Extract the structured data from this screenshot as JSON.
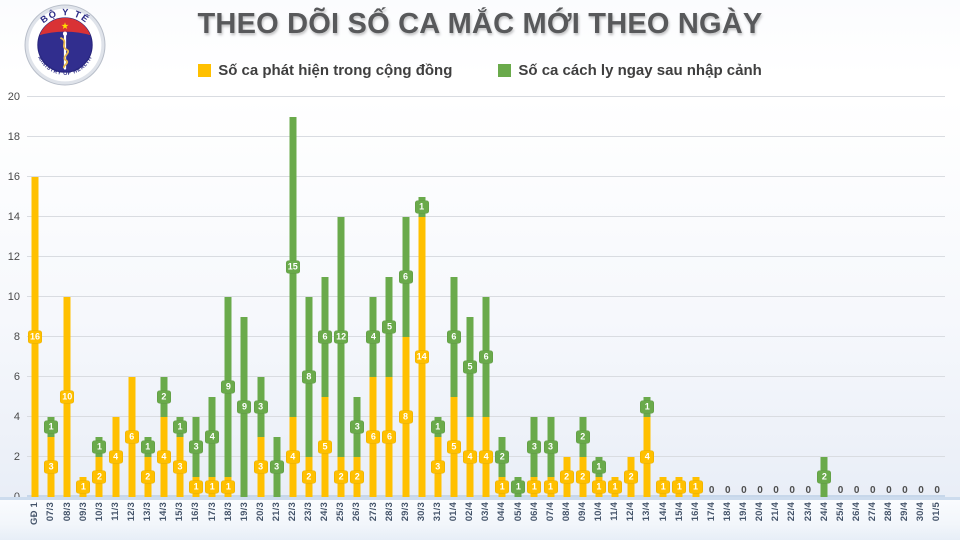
{
  "header": {
    "title": "THEO DÕI SỐ CA MẮC MỚI THEO NGÀY"
  },
  "logo": {
    "top_text": "BỘ Y TẾ",
    "bottom_text": "MINISTRY OF HEALTH",
    "star": "★"
  },
  "chart_data": {
    "type": "bar",
    "stacked": true,
    "title": "THEO DÕI SỐ CA MẮC MỚI THEO NGÀY",
    "grid": true,
    "legend_position": "top",
    "ylim": [
      0,
      20
    ],
    "ytick_step": 2,
    "categories": [
      "GĐ 1",
      "07/3",
      "08/3",
      "09/3",
      "10/3",
      "11/3",
      "12/3",
      "13/3",
      "14/3",
      "15/3",
      "16/3",
      "17/3",
      "18/3",
      "19/3",
      "20/3",
      "21/3",
      "22/3",
      "23/3",
      "24/3",
      "25/3",
      "26/3",
      "27/3",
      "28/3",
      "29/3",
      "30/3",
      "31/3",
      "01/4",
      "02/4",
      "03/4",
      "04/4",
      "05/4",
      "06/4",
      "07/4",
      "08/4",
      "09/4",
      "10/4",
      "11/4",
      "12/4",
      "13/4",
      "14/4",
      "15/4",
      "16/4",
      "17/4",
      "18/4",
      "19/4",
      "20/4",
      "21/4",
      "22/4",
      "23/4",
      "24/4",
      "25/4",
      "26/4",
      "27/4",
      "28/4",
      "29/4",
      "30/4",
      "01/5"
    ],
    "series": [
      {
        "name": "Số ca phát hiện trong cộng đồng",
        "color": "#FFC000",
        "values": [
          16,
          3,
          10,
          1,
          2,
          4,
          6,
          2,
          4,
          3,
          1,
          1,
          1,
          0,
          3,
          0,
          4,
          2,
          5,
          2,
          2,
          6,
          6,
          8,
          14,
          3,
          5,
          4,
          4,
          1,
          0,
          1,
          1,
          2,
          2,
          1,
          1,
          2,
          4,
          1,
          1,
          1,
          0,
          0,
          0,
          0,
          0,
          0,
          0,
          0,
          0,
          0,
          0,
          0,
          0,
          0,
          0
        ]
      },
      {
        "name": "Số ca cách ly ngay sau nhập cảnh",
        "color": "#6AAA4B",
        "values": [
          0,
          1,
          0,
          0,
          1,
          0,
          0,
          1,
          2,
          1,
          3,
          4,
          9,
          9,
          3,
          3,
          15,
          8,
          6,
          12,
          3,
          4,
          5,
          6,
          1,
          1,
          6,
          5,
          6,
          2,
          1,
          3,
          3,
          0,
          2,
          1,
          0,
          0,
          1,
          0,
          0,
          0,
          0,
          0,
          0,
          0,
          0,
          0,
          0,
          2,
          0,
          0,
          0,
          0,
          0,
          0,
          0
        ]
      }
    ],
    "zero_label": "0"
  }
}
